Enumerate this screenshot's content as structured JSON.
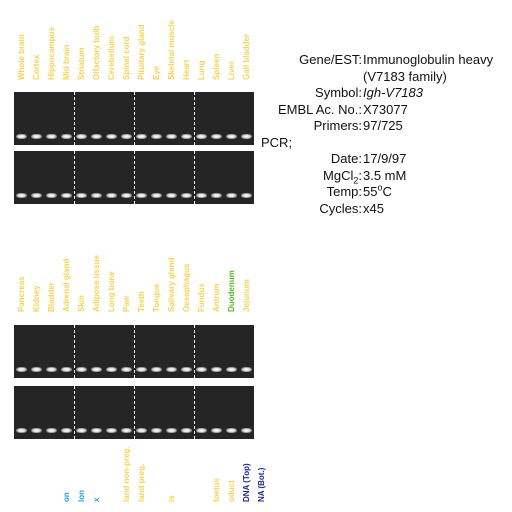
{
  "panels": [
    {
      "labels": [
        {
          "text": "Whole brain",
          "color": "#f5d35a"
        },
        {
          "text": "Cortex",
          "color": "#f5d35a"
        },
        {
          "text": "Hippocampus",
          "color": "#f5d35a"
        },
        {
          "text": "Mid brain",
          "color": "#f5d35a"
        },
        {
          "text": "Striatum",
          "color": "#f5d35a"
        },
        {
          "text": "Olfactory bulb",
          "color": "#f5d35a"
        },
        {
          "text": "Cerebellum",
          "color": "#f5d35a"
        },
        {
          "text": "Spinal cord",
          "color": "#f5d35a"
        },
        {
          "text": "Pituitary gland",
          "color": "#f5d35a"
        },
        {
          "text": "Eye",
          "color": "#f5d35a"
        },
        {
          "text": "Skeletal muscle",
          "color": "#f5d35a"
        },
        {
          "text": "Heart",
          "color": "#f5d35a"
        },
        {
          "text": "Lung",
          "color": "#f5d35a"
        },
        {
          "text": "Spleen",
          "color": "#f5d35a"
        },
        {
          "text": "Liver",
          "color": "#f5d35a"
        },
        {
          "text": "Gall bladder",
          "color": "#f5d35a"
        }
      ]
    },
    {
      "labels": [
        {
          "text": "Pancreas",
          "color": "#f5d35a"
        },
        {
          "text": "Kidney",
          "color": "#f5d35a"
        },
        {
          "text": "Bladder",
          "color": "#f5d35a"
        },
        {
          "text": "Adrenal gland",
          "color": "#f5d35a"
        },
        {
          "text": "Skin",
          "color": "#f5d35a"
        },
        {
          "text": "Adipose tissue",
          "color": "#f5d35a"
        },
        {
          "text": "Long bone",
          "color": "#f5d35a"
        },
        {
          "text": "Paw",
          "color": "#f5d35a"
        },
        {
          "text": "Teeth",
          "color": "#f5d35a"
        },
        {
          "text": "Tongue",
          "color": "#f5d35a"
        },
        {
          "text": "Salivary gland",
          "color": "#f5d35a"
        },
        {
          "text": "Oesophagus",
          "color": "#f5d35a"
        },
        {
          "text": "Fundus",
          "color": "#f5d35a"
        },
        {
          "text": "Antrum",
          "color": "#f5d35a"
        },
        {
          "text": "Duodenum",
          "color": "#5ab82e"
        },
        {
          "text": "Jejunum",
          "color": "#f5d35a"
        }
      ]
    },
    {
      "labels": [
        {
          "text": "",
          "color": "#f5d35a"
        },
        {
          "text": "",
          "color": "#f5d35a"
        },
        {
          "text": "",
          "color": "#f5d35a"
        },
        {
          "text": "on",
          "color": "#2aa1e0"
        },
        {
          "text": "lon",
          "color": "#2aa1e0"
        },
        {
          "text": "x",
          "color": "#2aa1e0"
        },
        {
          "text": "",
          "color": "#f5d35a"
        },
        {
          "text": "land non-preg.",
          "color": "#f5d35a"
        },
        {
          "text": "land preg.",
          "color": "#f5d35a"
        },
        {
          "text": "",
          "color": "#f5d35a"
        },
        {
          "text": "is",
          "color": "#f5d35a"
        },
        {
          "text": "",
          "color": "#f5d35a"
        },
        {
          "text": "",
          "color": "#f5d35a"
        },
        {
          "text": "foetus",
          "color": "#f5d35a"
        },
        {
          "text": "oduct",
          "color": "#f5d35a"
        },
        {
          "text": "DNA (Top)",
          "color": "#1f2a8c"
        },
        {
          "text": "NA (Bot.)",
          "color": "#1f2a8c"
        }
      ]
    }
  ],
  "info": {
    "gene_key": "Gene/EST:",
    "gene_val_1": "Immunoglobulin heavy",
    "gene_val_2": "(V7183 family)",
    "symbol_key": "Symbol:",
    "symbol_val": "Igh-V7183",
    "embl_key": "EMBL Ac. No.:",
    "embl_val": "X73077",
    "primers_key": "Primers:",
    "primers_val": "97/725",
    "pcr_label": "PCR;",
    "date_key": "Date:",
    "date_val": "17/9/97",
    "mgcl_key_pre": "MgCl",
    "mgcl_key_sub": "2",
    "mgcl_key_post": ":",
    "mgcl_val": "3.5 mM",
    "temp_key": "Temp:",
    "temp_val_num": "55",
    "temp_val_sup": "o",
    "temp_val_unit": "C",
    "cycles_key": "Cycles:",
    "cycles_val": "x45"
  }
}
